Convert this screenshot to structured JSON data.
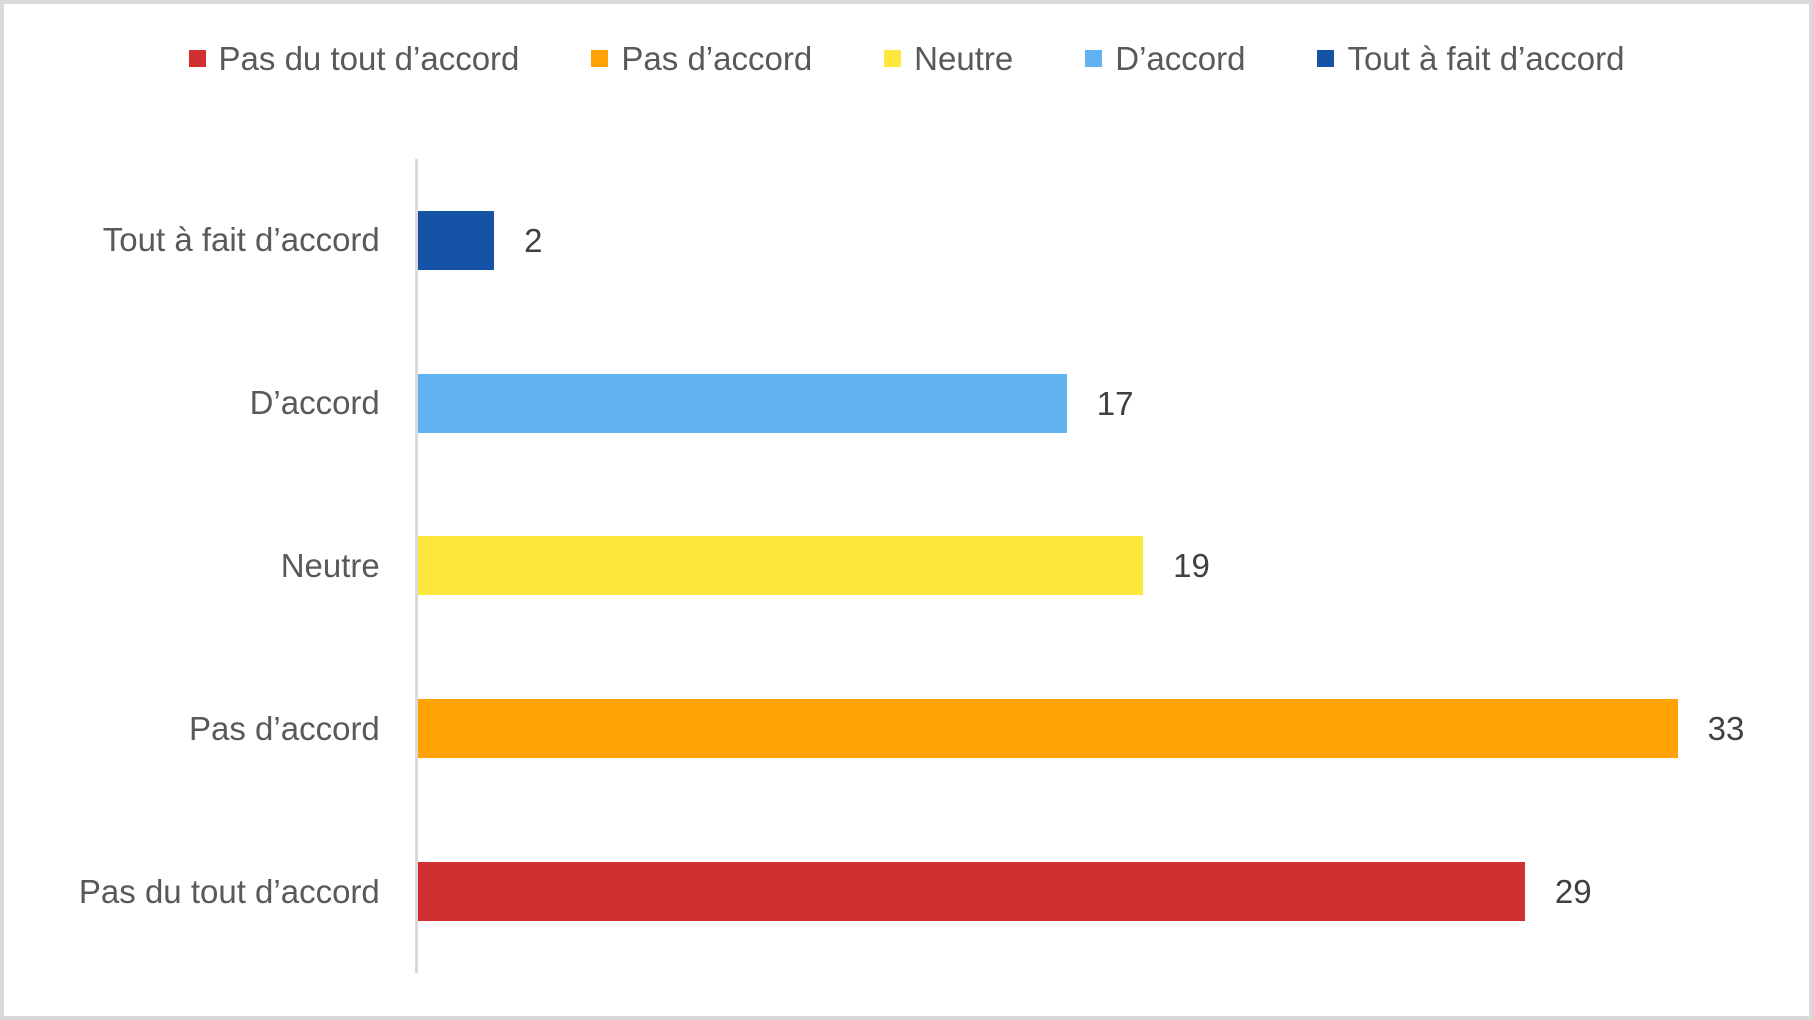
{
  "colors": {
    "pas_du_tout_daccord": "#d23030",
    "pas_daccord": "#ffa302",
    "neutre": "#fee83e",
    "daccord": "#61b2f1",
    "tout_a_fait_daccord": "#1453a6",
    "axis_line": "#d9d9d9",
    "frame_border": "#d9d9d9",
    "category_label": "#595959",
    "value_label": "#404040"
  },
  "legend": {
    "position": "top",
    "items": [
      {
        "label": "Pas du tout d’accord",
        "color": "#d23030"
      },
      {
        "label": "Pas d’accord",
        "color": "#ffa302"
      },
      {
        "label": "Neutre",
        "color": "#fee83e"
      },
      {
        "label": "D’accord",
        "color": "#61b2f1"
      },
      {
        "label": "Tout à fait d’accord",
        "color": "#1453a6"
      }
    ]
  },
  "chart_data": {
    "type": "bar",
    "orientation": "horizontal",
    "title": "",
    "xlabel": "",
    "ylabel": "",
    "xlim": [
      0,
      35
    ],
    "grid": false,
    "data_labels": true,
    "categories": [
      "Tout à fait d’accord",
      "D’accord",
      "Neutre",
      "Pas d’accord",
      "Pas du tout d’accord"
    ],
    "values": [
      2,
      17,
      19,
      33,
      29
    ],
    "value_labels": [
      "2",
      "17",
      "19",
      "33",
      "29"
    ],
    "bar_colors": [
      "#1453a6",
      "#61b2f1",
      "#fee83e",
      "#ffa302",
      "#d23030"
    ]
  }
}
